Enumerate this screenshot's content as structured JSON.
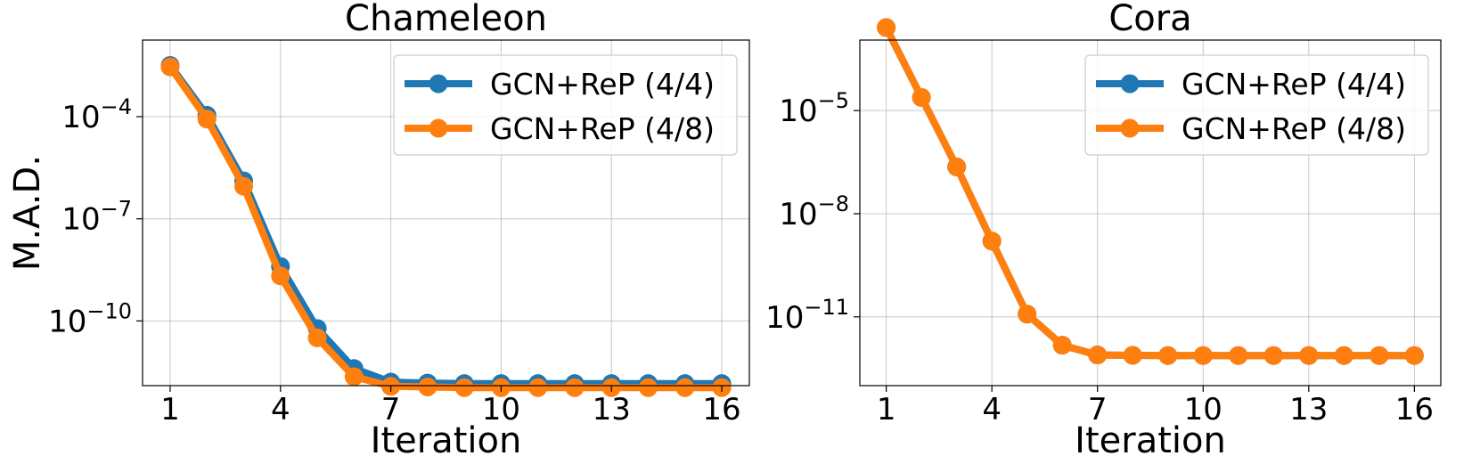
{
  "chart_data": [
    {
      "type": "line",
      "title": "Chameleon",
      "xlabel": "Iteration",
      "ylabel": "M.A.D.",
      "yscale": "log",
      "x": [
        1,
        2,
        3,
        4,
        5,
        6,
        7,
        8,
        9,
        10,
        11,
        12,
        13,
        14,
        15,
        16
      ],
      "xticks": [
        1,
        4,
        7,
        10,
        13,
        16
      ],
      "xlim": [
        0.25,
        16.75
      ],
      "yticks": [
        {
          "base": "10",
          "exp": "−4",
          "value": 0.0001
        },
        {
          "base": "10",
          "exp": "−7",
          "value": 1e-07
        },
        {
          "base": "10",
          "exp": "−10",
          "value": 1e-10
        }
      ],
      "ylim_exp": [
        -11.9,
        -1.75
      ],
      "series": [
        {
          "name": "GCN+ReP (4/4)",
          "color": "#1f77b4",
          "values": [
            0.0032,
            0.00011,
            1.3e-06,
            4e-09,
            6e-11,
            4e-12,
            1.6e-12,
            1.5e-12,
            1.45e-12,
            1.45e-12,
            1.45e-12,
            1.45e-12,
            1.45e-12,
            1.45e-12,
            1.45e-12,
            1.45e-12
          ]
        },
        {
          "name": "GCN+ReP (4/8)",
          "color": "#ff7f0e",
          "values": [
            0.0029,
            8.5e-05,
            9e-07,
            2.1e-09,
            3.2e-11,
            2.3e-12,
            1.2e-12,
            1.15e-12,
            1.1e-12,
            1.1e-12,
            1.1e-12,
            1.1e-12,
            1.1e-12,
            1.1e-12,
            1.1e-12,
            1.1e-12
          ]
        }
      ],
      "grid": true,
      "legend": "upper right"
    },
    {
      "type": "line",
      "title": "Cora",
      "xlabel": "Iteration",
      "ylabel": "",
      "yscale": "log",
      "x": [
        1,
        2,
        3,
        4,
        5,
        6,
        7,
        8,
        9,
        10,
        11,
        12,
        13,
        14,
        15,
        16
      ],
      "xticks": [
        1,
        4,
        7,
        10,
        13,
        16
      ],
      "xlim": [
        0.25,
        16.75
      ],
      "yticks": [
        {
          "base": "10",
          "exp": "−5",
          "value": 1e-05
        },
        {
          "base": "10",
          "exp": "−8",
          "value": 1e-08
        },
        {
          "base": "10",
          "exp": "−11",
          "value": 1e-11
        }
      ],
      "ylim_exp": [
        -13.0,
        -2.95
      ],
      "series": [
        {
          "name": "GCN+ReP (4/4)",
          "color": "#1f77b4",
          "values": [
            0.0026,
            2.4e-05,
            2.3e-07,
            1.6e-09,
            1.2e-11,
            1.5e-12,
            7.8e-13,
            7.6e-13,
            7.5e-13,
            7.5e-13,
            7.5e-13,
            7.5e-13,
            7.5e-13,
            7.5e-13,
            7.5e-13,
            7.5e-13
          ]
        },
        {
          "name": "GCN+ReP (4/8)",
          "color": "#ff7f0e",
          "values": [
            0.0026,
            2.4e-05,
            2.3e-07,
            1.6e-09,
            1.2e-11,
            1.5e-12,
            7.8e-13,
            7.6e-13,
            7.5e-13,
            7.5e-13,
            7.5e-13,
            7.5e-13,
            7.5e-13,
            7.5e-13,
            7.5e-13,
            7.5e-13
          ]
        }
      ],
      "grid": true,
      "legend": "upper right"
    }
  ]
}
